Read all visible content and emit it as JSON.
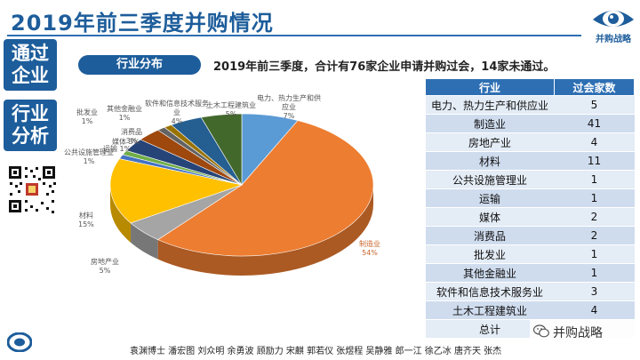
{
  "header": {
    "title": "2019年前三季度并购情况",
    "brand": "并购战略"
  },
  "sidebar": {
    "tabs": [
      "通过企业",
      "行业分析"
    ]
  },
  "section": {
    "pill_label": "行业分布",
    "summary": "2019年前三季度，合计有76家企业申请并购过会，14家未通过。"
  },
  "chart_data": {
    "type": "pie",
    "title": "",
    "slices": [
      {
        "label": "电力、热力生产和供应业",
        "pct": "7%",
        "value": 7,
        "color": "#5b9bd5"
      },
      {
        "label": "制造业",
        "pct": "54%",
        "value": 54,
        "color": "#ed7d31"
      },
      {
        "label": "房地产业",
        "pct": "5%",
        "value": 5,
        "color": "#a5a5a5"
      },
      {
        "label": "材料",
        "pct": "15%",
        "value": 15,
        "color": "#ffc000"
      },
      {
        "label": "公共设施管理业",
        "pct": "1%",
        "value": 1,
        "color": "#4472c4"
      },
      {
        "label": "运输",
        "pct": "1%",
        "value": 1,
        "color": "#70ad47"
      },
      {
        "label": "媒体",
        "pct": "3%",
        "value": 3,
        "color": "#264478"
      },
      {
        "label": "消费品",
        "pct": "3%",
        "value": 3,
        "color": "#9e480e"
      },
      {
        "label": "批发业",
        "pct": "1%",
        "value": 1,
        "color": "#636363"
      },
      {
        "label": "其他金融业",
        "pct": "1%",
        "value": 1,
        "color": "#997300"
      },
      {
        "label": "软件和信息技术服务业",
        "pct": "4%",
        "value": 4,
        "color": "#255e91"
      },
      {
        "label": "土木工程建筑业",
        "pct": "5%",
        "value": 5,
        "color": "#43682b"
      }
    ]
  },
  "table": {
    "headers": [
      "行业",
      "过会家数"
    ],
    "rows": [
      [
        "电力、热力生产和供应业",
        "5"
      ],
      [
        "制造业",
        "41"
      ],
      [
        "房地产业",
        "4"
      ],
      [
        "材料",
        "11"
      ],
      [
        "公共设施管理业",
        "1"
      ],
      [
        "运输",
        "1"
      ],
      [
        "媒体",
        "2"
      ],
      [
        "消费品",
        "2"
      ],
      [
        "批发业",
        "1"
      ],
      [
        "其他金融业",
        "1"
      ],
      [
        "软件和信息技术服务业",
        "3"
      ],
      [
        "土木工程建筑业",
        "4"
      ],
      [
        "总计",
        ""
      ]
    ]
  },
  "footer": {
    "authors": "袁渊博士 潘宏图 刘众明 余勇波 顾励力 宋麒 郭若仪 张煜程 吴静雅 郎一江 徐乙冰 唐齐天 张杰",
    "wechat_label": "并购战略"
  },
  "colors": {
    "primary": "#1d5d9b",
    "table_header": "#2e6fb3"
  }
}
